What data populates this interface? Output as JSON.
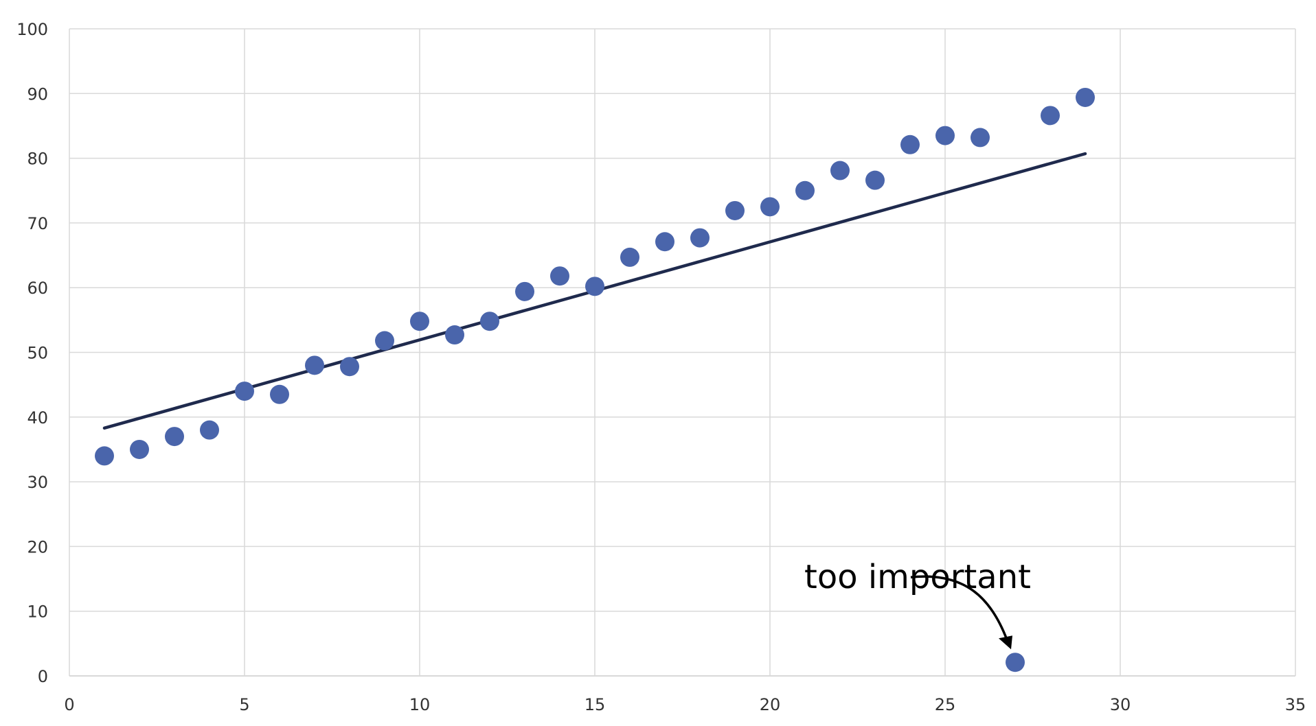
{
  "chart_data": {
    "type": "scatter",
    "title": "",
    "xlabel": "",
    "ylabel": "",
    "xlim": [
      0,
      35
    ],
    "ylim": [
      0,
      100
    ],
    "x_ticks": [
      0,
      5,
      10,
      15,
      20,
      25,
      30,
      35
    ],
    "y_ticks": [
      0,
      10,
      20,
      30,
      40,
      50,
      60,
      70,
      80,
      90,
      100
    ],
    "grid": true,
    "point_color": "#4a65ab",
    "line_color": "#1f2a4d",
    "grid_color": "#d9d9d9",
    "points": [
      {
        "x": 1,
        "y": 34
      },
      {
        "x": 2,
        "y": 35
      },
      {
        "x": 3,
        "y": 37
      },
      {
        "x": 4,
        "y": 38
      },
      {
        "x": 5,
        "y": 44
      },
      {
        "x": 6,
        "y": 43.5
      },
      {
        "x": 7,
        "y": 48
      },
      {
        "x": 8,
        "y": 47.8
      },
      {
        "x": 9,
        "y": 51.8
      },
      {
        "x": 10,
        "y": 54.8
      },
      {
        "x": 11,
        "y": 52.7
      },
      {
        "x": 12,
        "y": 54.8
      },
      {
        "x": 13,
        "y": 59.4
      },
      {
        "x": 14,
        "y": 61.8
      },
      {
        "x": 15,
        "y": 60.2
      },
      {
        "x": 16,
        "y": 64.7
      },
      {
        "x": 17,
        "y": 67.1
      },
      {
        "x": 18,
        "y": 67.7
      },
      {
        "x": 19,
        "y": 71.9
      },
      {
        "x": 20,
        "y": 72.5
      },
      {
        "x": 21,
        "y": 75
      },
      {
        "x": 22,
        "y": 78.1
      },
      {
        "x": 23,
        "y": 76.6
      },
      {
        "x": 24,
        "y": 82.1
      },
      {
        "x": 25,
        "y": 83.5
      },
      {
        "x": 26,
        "y": 83.2
      },
      {
        "x": 27,
        "y": 2.1
      },
      {
        "x": 28,
        "y": 86.6
      },
      {
        "x": 29,
        "y": 89.4
      }
    ],
    "trendline": {
      "x1": 1,
      "y1": 38.3,
      "x2": 29,
      "y2": 80.7
    },
    "annotation": {
      "text": "too important",
      "target_x": 27,
      "target_y": 2.1
    }
  }
}
